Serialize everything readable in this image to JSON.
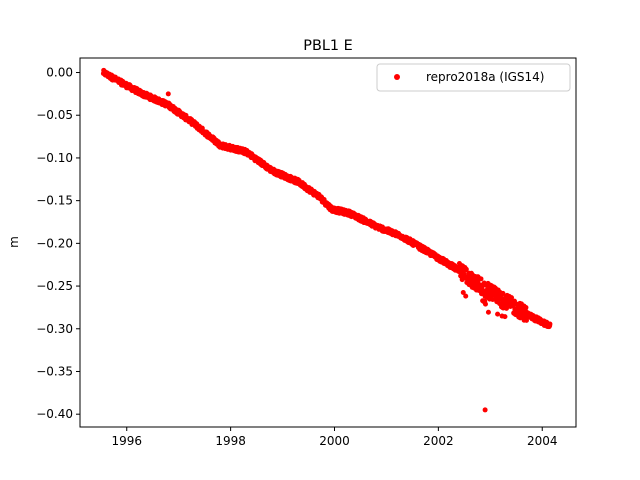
{
  "chart_data": {
    "type": "scatter",
    "title": "PBL1 E",
    "xlabel": "",
    "ylabel": "m",
    "xlim": [
      1995.1,
      2004.65
    ],
    "ylim": [
      -0.415,
      0.017
    ],
    "x_ticks": [
      1996,
      1998,
      2000,
      2002,
      2004
    ],
    "y_ticks": [
      0.0,
      -0.05,
      -0.1,
      -0.15,
      -0.2,
      -0.25,
      -0.3,
      -0.35,
      -0.4
    ],
    "y_tick_labels": [
      "0.00",
      "−0.05",
      "−0.10",
      "−0.15",
      "−0.20",
      "−0.25",
      "−0.30",
      "−0.35",
      "−0.40"
    ],
    "x_tick_labels": [
      "1996",
      "1998",
      "2000",
      "2002",
      "2004"
    ],
    "grid": false,
    "legend_position": "upper right",
    "series": [
      {
        "name": "repro2018a (IGS14)",
        "color": "#ff0000",
        "marker": "circle",
        "trend": [
          [
            1995.55,
            0.0
          ],
          [
            1995.9,
            -0.012
          ],
          [
            1996.3,
            -0.025
          ],
          [
            1996.8,
            -0.038
          ],
          [
            1997.3,
            -0.06
          ],
          [
            1997.8,
            -0.085
          ],
          [
            1998.3,
            -0.093
          ],
          [
            1998.8,
            -0.115
          ],
          [
            1999.3,
            -0.128
          ],
          [
            1999.7,
            -0.145
          ],
          [
            1999.95,
            -0.16
          ],
          [
            2000.3,
            -0.165
          ],
          [
            2000.8,
            -0.18
          ],
          [
            2001.3,
            -0.192
          ],
          [
            2001.8,
            -0.21
          ],
          [
            2002.3,
            -0.228
          ],
          [
            2002.7,
            -0.245
          ],
          [
            2003.2,
            -0.265
          ],
          [
            2003.7,
            -0.283
          ],
          [
            2004.15,
            -0.297
          ]
        ],
        "outliers": [
          [
            1996.8,
            -0.025
          ],
          [
            2002.9,
            -0.395
          ]
        ]
      }
    ]
  }
}
